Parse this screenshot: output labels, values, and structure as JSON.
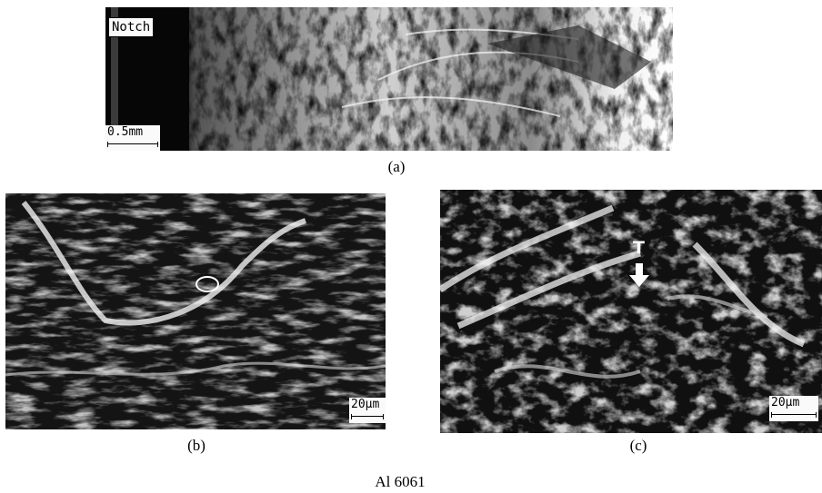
{
  "panels": {
    "a": {
      "caption": "(a)",
      "label": "Notch",
      "scale": "0.5mm"
    },
    "b": {
      "caption": "(b)",
      "scale": "20μm"
    },
    "c": {
      "caption": "(c)",
      "scale": "20μm",
      "marker": "T"
    }
  },
  "material": "Al 6061",
  "colors": {
    "background": "#ffffff",
    "image_dark": "#1a1a1a",
    "image_light": "#e8e8e8"
  }
}
